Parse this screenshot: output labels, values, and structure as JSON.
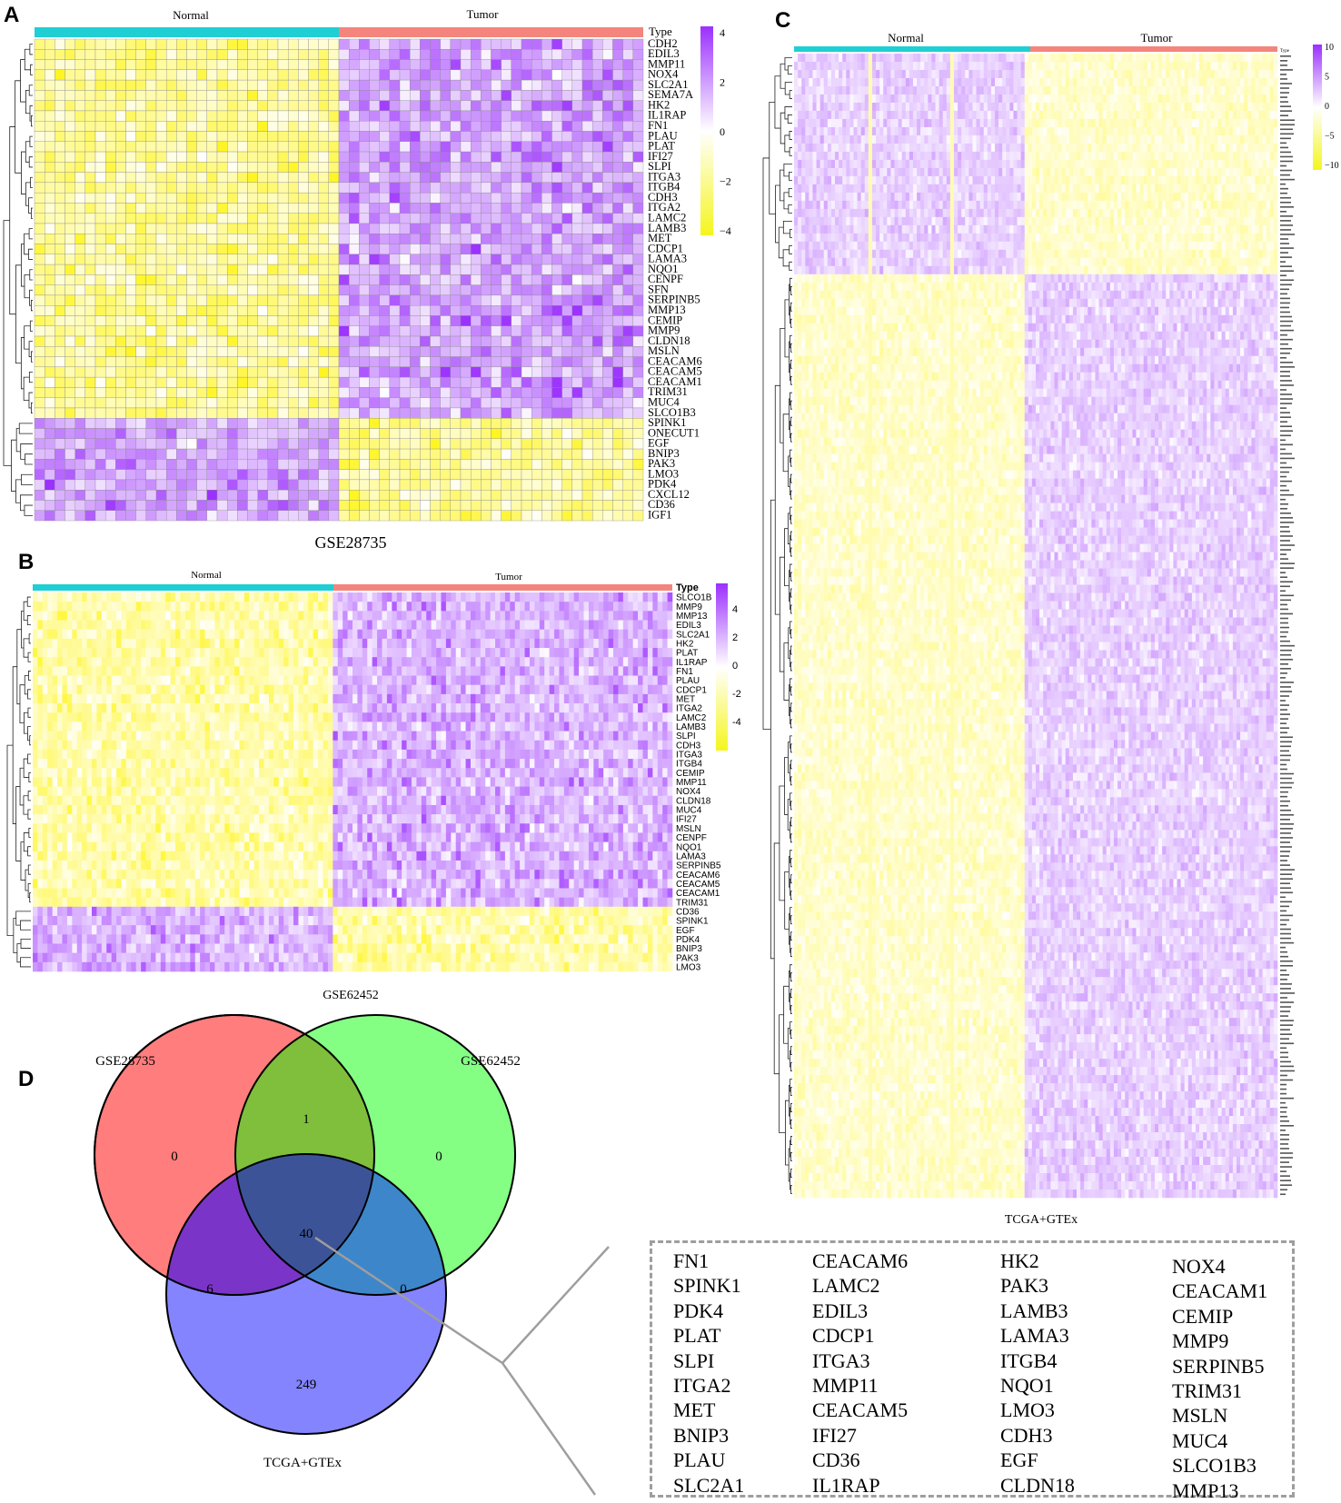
{
  "panels": {
    "A": {
      "letter": "A",
      "groups": [
        "Normal",
        "Tumor"
      ],
      "type_label": "Type",
      "dataset": "GSE28735",
      "genes": [
        "CDH2",
        "EDIL3",
        "MMP11",
        "NOX4",
        "SLC2A1",
        "SEMA7A",
        "HK2",
        "IL1RAP",
        "FN1",
        "PLAU",
        "PLAT",
        "IFI27",
        "SLPI",
        "ITGA3",
        "ITGB4",
        "CDH3",
        "ITGA2",
        "LAMC2",
        "LAMB3",
        "MET",
        "CDCP1",
        "LAMA3",
        "NQO1",
        "CENPF",
        "SFN",
        "SERPINB5",
        "MMP13",
        "CEMIP",
        "MMP9",
        "CLDN18",
        "MSLN",
        "CEACAM6",
        "CEACAM5",
        "CEACAM1",
        "TRIM31",
        "MUC4",
        "SLCO1B3",
        "SPINK1",
        "ONECUT1",
        "EGF",
        "BNIP3",
        "PAK3",
        "LMO3",
        "PDK4",
        "CXCL12",
        "CD36",
        "IGF1"
      ],
      "down_start": 37,
      "legend_ticks": [
        "4",
        "2",
        "0",
        "−2",
        "−4"
      ]
    },
    "B": {
      "letter": "B",
      "groups": [
        "Normal",
        "Tumor"
      ],
      "type_label": "Type",
      "dataset": "GSE62452",
      "genes": [
        "SLCO1B",
        "MMP9",
        "MMP13",
        "EDIL3",
        "SLC2A1",
        "HK2",
        "PLAT",
        "IL1RAP",
        "FN1",
        "PLAU",
        "CDCP1",
        "MET",
        "ITGA2",
        "LAMC2",
        "LAMB3",
        "SLPI",
        "CDH3",
        "ITGA3",
        "ITGB4",
        "CEMIP",
        "MMP11",
        "NOX4",
        "CLDN18",
        "MUC4",
        "IFI27",
        "MSLN",
        "CENPF",
        "NQO1",
        "LAMA3",
        "SERPINB5",
        "CEACAM6",
        "CEACAM5",
        "CEACAM1",
        "TRIM31",
        "CD36",
        "SPINK1",
        "EGF",
        "PDK4",
        "BNIP3",
        "PAK3",
        "LMO3"
      ],
      "down_start": 34,
      "legend_ticks": [
        "4",
        "2",
        "0",
        "-2",
        "-4"
      ]
    },
    "C": {
      "letter": "C",
      "groups": [
        "Normal",
        "Tumor"
      ],
      "type_label": "Type",
      "dataset": "TCGA+GTEx",
      "legend_ticks": [
        "10",
        "5",
        "0",
        "−5",
        "−10"
      ]
    },
    "D": {
      "letter": "D",
      "set_labels": [
        "GSE28735",
        "GSE62452",
        "TCGA+GTEx"
      ],
      "regions": {
        "only_a": "0",
        "ab": "1",
        "only_b": "0",
        "abc": "40",
        "ac": "6",
        "bc": "0",
        "only_c": "249"
      },
      "set_colors": [
        "#ff6f6f",
        "#77ff77",
        "#7d7dff"
      ]
    }
  },
  "gene_box": {
    "columns": [
      [
        "FN1",
        "SPINK1",
        "PDK4",
        "PLAT",
        "SLPI",
        "ITGA2",
        "MET",
        "BNIP3",
        "PLAU",
        "SLC2A1"
      ],
      [
        "CEACAM6",
        "LAMC2",
        "EDIL3",
        "CDCP1",
        "ITGA3",
        "MMP11",
        "CEACAM5",
        "IFI27",
        "CD36",
        "IL1RAP"
      ],
      [
        "HK2",
        "PAK3",
        "LAMB3",
        "LAMA3",
        "ITGB4",
        "NQO1",
        "LMO3",
        "CDH3",
        "EGF",
        "CLDN18"
      ],
      [
        "NOX4",
        "CEACAM1",
        "CEMIP",
        "MMP9",
        "SERPINB5",
        "TRIM31",
        "MSLN",
        "MUC4",
        "SLCO1B3",
        "MMP13"
      ]
    ]
  },
  "colors": {
    "normal_bar": "#1fcfd3",
    "tumor_bar": "#f4857c",
    "high": "#9b30ff",
    "mid": "#ffffff",
    "low": "#f5f51e"
  }
}
